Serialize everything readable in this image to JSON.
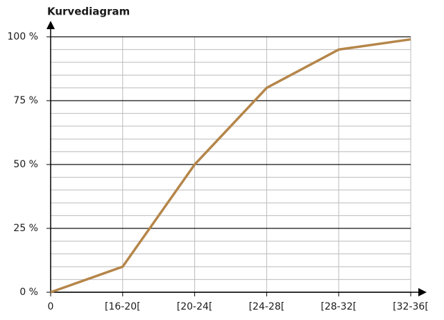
{
  "chart_data": {
    "type": "line",
    "title": "Kurvediagram",
    "categories": [
      "0",
      "[16-20[",
      "[20-24[",
      "[24-28[",
      "[28-32[",
      "[32-36["
    ],
    "series": [
      {
        "name": null,
        "color": "#b5864a",
        "values": [
          0,
          10,
          50,
          80,
          95,
          99
        ]
      }
    ],
    "ylim": [
      0,
      100
    ],
    "yticks": [
      {
        "value": 0,
        "label": "0 %"
      },
      {
        "value": 25,
        "label": "25 %"
      },
      {
        "value": 50,
        "label": "50 %"
      },
      {
        "value": 75,
        "label": "75 %"
      },
      {
        "value": 100,
        "label": "100 %"
      }
    ],
    "minor_yticks": [
      5,
      10,
      15,
      20,
      30,
      35,
      40,
      45,
      55,
      60,
      65,
      70,
      80,
      85,
      90,
      95
    ],
    "grid": true
  }
}
